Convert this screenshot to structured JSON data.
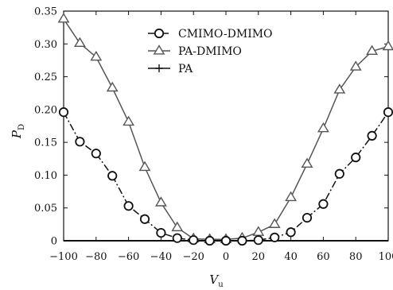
{
  "chart_data": {
    "type": "line",
    "xlabel": "V",
    "xlabel_sub": "u",
    "ylabel": "P",
    "ylabel_sub": "D",
    "xlim": [
      -100,
      100
    ],
    "ylim": [
      0,
      0.35
    ],
    "xticks": [
      -100,
      -80,
      -60,
      -40,
      -20,
      0,
      20,
      40,
      60,
      80,
      100
    ],
    "xtick_labels": [
      "−100",
      "−80",
      "−60",
      "−40",
      "−20",
      "0",
      "20",
      "40",
      "60",
      "80",
      "100"
    ],
    "yticks": [
      0,
      0.05,
      0.1,
      0.15,
      0.2,
      0.25,
      0.3,
      0.35
    ],
    "ytick_labels": [
      "0",
      "0.05",
      "0.10",
      "0.15",
      "0.20",
      "0.25",
      "0.30",
      "0.35"
    ],
    "grid": false,
    "legend_position": "top-center",
    "series": [
      {
        "name": "CMIMO-DMIMO",
        "marker": "circle",
        "line_style": "dash-dot",
        "color": "#111111",
        "x": [
          -100,
          -90,
          -80,
          -70,
          -60,
          -50,
          -40,
          -30,
          -20,
          -10,
          0,
          10,
          20,
          30,
          40,
          50,
          60,
          70,
          80,
          90,
          100
        ],
        "y": [
          0.196,
          0.151,
          0.133,
          0.099,
          0.053,
          0.033,
          0.012,
          0.004,
          0.001,
          0.0,
          0.0,
          0.0,
          0.001,
          0.005,
          0.013,
          0.035,
          0.056,
          0.102,
          0.127,
          0.16,
          0.196
        ]
      },
      {
        "name": "PA-DMIMO",
        "marker": "triangle",
        "line_style": "solid",
        "color": "#555555",
        "x": [
          -100,
          -90,
          -80,
          -70,
          -60,
          -50,
          -40,
          -30,
          -20,
          -10,
          0,
          10,
          20,
          30,
          40,
          50,
          60,
          70,
          80,
          90,
          100
        ],
        "y": [
          0.338,
          0.301,
          0.28,
          0.233,
          0.181,
          0.112,
          0.058,
          0.02,
          0.003,
          0.002,
          0.002,
          0.004,
          0.013,
          0.025,
          0.066,
          0.117,
          0.171,
          0.23,
          0.265,
          0.289,
          0.296
        ]
      },
      {
        "name": "PA",
        "marker": "plus",
        "line_style": "solid",
        "color": "#111111",
        "x": [
          -100,
          -90,
          -80,
          -70,
          -60,
          -50,
          -40,
          -30,
          -20,
          -10,
          0,
          10,
          20,
          30,
          40,
          50,
          60,
          70,
          80,
          90,
          100
        ],
        "y": [
          0,
          0,
          0,
          0,
          0,
          0,
          0,
          0,
          0,
          0,
          0,
          0,
          0,
          0,
          0,
          0,
          0,
          0,
          0,
          0,
          0
        ]
      }
    ]
  }
}
